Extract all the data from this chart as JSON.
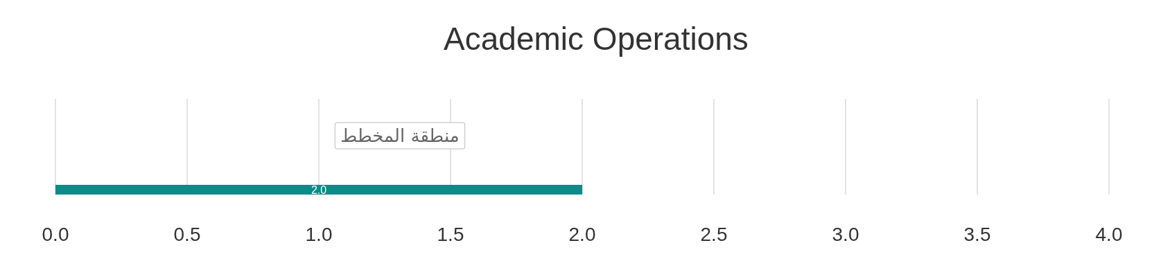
{
  "chart_data": {
    "type": "bar",
    "orientation": "horizontal",
    "title": "Academic Operations",
    "categories": [
      null
    ],
    "series": [
      {
        "color": "#0e8a87",
        "values": [
          2.0
        ],
        "value_labels": [
          "2.0"
        ]
      }
    ],
    "xlim": [
      0,
      4
    ],
    "xticks": [
      {
        "value": 0,
        "label": "0.0"
      },
      {
        "value": 0.5,
        "label": "0.5"
      },
      {
        "value": 1,
        "label": "1.0"
      },
      {
        "value": 1.5,
        "label": "1.5"
      },
      {
        "value": 2,
        "label": "2.0"
      },
      {
        "value": 2.5,
        "label": "2.5"
      },
      {
        "value": 3,
        "label": "3.0"
      },
      {
        "value": 3.5,
        "label": "3.5"
      },
      {
        "value": 4,
        "label": "4.0"
      }
    ],
    "grid": "x",
    "annotations": [
      "منطقة المخطط"
    ]
  }
}
